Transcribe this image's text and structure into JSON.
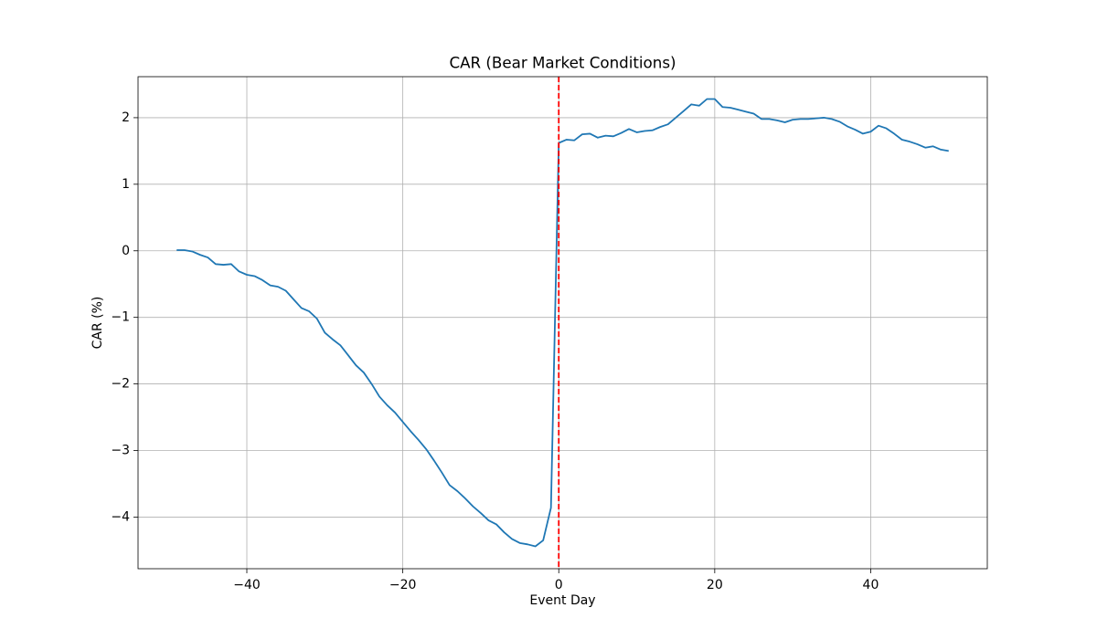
{
  "chart_data": {
    "type": "line",
    "title": "CAR (Bear Market Conditions)",
    "xlabel": "Event Day",
    "ylabel": "CAR (%)",
    "x": [
      -49,
      -48,
      -47,
      -46,
      -45,
      -44,
      -43,
      -42,
      -41,
      -40,
      -39,
      -38,
      -37,
      -36,
      -35,
      -34,
      -33,
      -32,
      -31,
      -30,
      -29,
      -28,
      -27,
      -26,
      -25,
      -24,
      -23,
      -22,
      -21,
      -20,
      -19,
      -18,
      -17,
      -16,
      -15,
      -14,
      -13,
      -12,
      -11,
      -10,
      -9,
      -8,
      -7,
      -6,
      -5,
      -4,
      -3,
      -2,
      -1,
      0,
      1,
      2,
      3,
      4,
      5,
      6,
      7,
      8,
      9,
      10,
      11,
      12,
      13,
      14,
      15,
      16,
      17,
      18,
      19,
      20,
      21,
      22,
      23,
      24,
      25,
      26,
      27,
      28,
      29,
      30,
      31,
      32,
      33,
      34,
      35,
      36,
      37,
      38,
      39,
      40,
      41,
      42,
      43,
      44,
      45,
      46,
      47,
      48,
      49,
      50
    ],
    "values": [
      0.01,
      0.01,
      -0.01,
      -0.06,
      -0.1,
      -0.2,
      -0.21,
      -0.2,
      -0.31,
      -0.36,
      -0.38,
      -0.44,
      -0.52,
      -0.54,
      -0.6,
      -0.73,
      -0.86,
      -0.91,
      -1.02,
      -1.23,
      -1.33,
      -1.42,
      -1.57,
      -1.72,
      -1.83,
      -2.0,
      -2.19,
      -2.32,
      -2.43,
      -2.57,
      -2.71,
      -2.84,
      -2.98,
      -3.15,
      -3.33,
      -3.52,
      -3.61,
      -3.72,
      -3.84,
      -3.94,
      -4.05,
      -4.11,
      -4.23,
      -4.33,
      -4.39,
      -4.41,
      -4.44,
      -4.35,
      -3.86,
      1.62,
      1.67,
      1.66,
      1.75,
      1.76,
      1.7,
      1.73,
      1.72,
      1.77,
      1.83,
      1.78,
      1.8,
      1.81,
      1.86,
      1.9,
      2.0,
      2.1,
      2.2,
      2.18,
      2.28,
      2.28,
      2.16,
      2.15,
      2.12,
      2.09,
      2.06,
      1.98,
      1.98,
      1.96,
      1.93,
      1.97,
      1.98,
      1.98,
      1.99,
      2.0,
      1.98,
      1.94,
      1.87,
      1.82,
      1.76,
      1.79,
      1.88,
      1.84,
      1.76,
      1.67,
      1.64,
      1.6,
      1.55,
      1.57,
      1.52,
      1.5
    ],
    "color": "#1f77b4",
    "xlim": [
      -53.95,
      54.95
    ],
    "xticks": [
      {
        "value": -40,
        "label": "−40"
      },
      {
        "value": -20,
        "label": "−20"
      },
      0,
      20,
      40
    ],
    "ylim": [
      -4.776,
      2.616
    ],
    "yticks": [
      {
        "value": -4,
        "label": "−4"
      },
      {
        "value": -3,
        "label": "−3"
      },
      {
        "value": -2,
        "label": "−2"
      },
      {
        "value": -1,
        "label": "−1"
      },
      0,
      1,
      2
    ],
    "vline": {
      "x": 0,
      "color": "#ff0000"
    },
    "grid": true
  }
}
